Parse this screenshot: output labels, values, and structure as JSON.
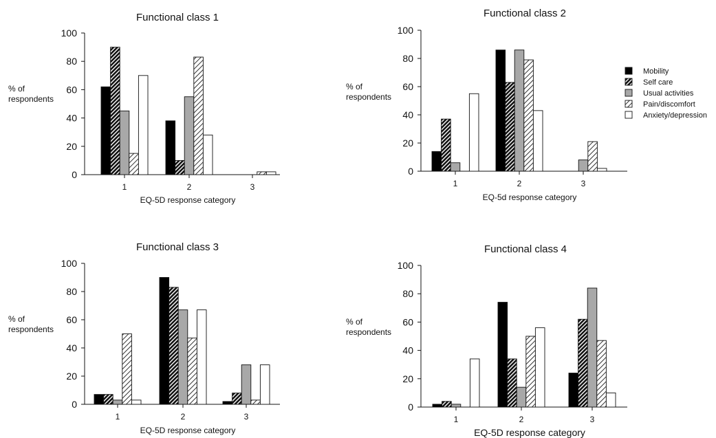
{
  "chart_data": [
    {
      "type": "bar",
      "title": "Functional class 1",
      "xlabel": "EQ-5D response category",
      "ylabel_lines": [
        "% of",
        "respondents"
      ],
      "categories": [
        "1",
        "2",
        "3"
      ],
      "ylim": [
        0,
        100
      ],
      "yticks": [
        "0",
        "20",
        "40",
        "60",
        "80",
        "100"
      ],
      "series": [
        {
          "name": "Mobility",
          "values": [
            62,
            38,
            0
          ]
        },
        {
          "name": "Self care",
          "values": [
            90,
            10,
            0
          ]
        },
        {
          "name": "Usual activities",
          "values": [
            45,
            55,
            0
          ]
        },
        {
          "name": "Pain/discomfort",
          "values": [
            15,
            83,
            2
          ]
        },
        {
          "name": "Anxiety/depression",
          "values": [
            70,
            28,
            2
          ]
        }
      ]
    },
    {
      "type": "bar",
      "title": "Functional class 2",
      "xlabel": "EQ-5d response category",
      "ylabel_lines": [
        "% of",
        "respondents"
      ],
      "categories": [
        "1",
        "2",
        "3"
      ],
      "ylim": [
        0,
        100
      ],
      "yticks": [
        "0",
        "20",
        "40",
        "60",
        "80",
        "100"
      ],
      "legend_position": "right",
      "series": [
        {
          "name": "Mobility",
          "values": [
            14,
            86,
            0
          ]
        },
        {
          "name": "Self care",
          "values": [
            37,
            63,
            0
          ]
        },
        {
          "name": "Usual activities",
          "values": [
            6,
            86,
            8
          ]
        },
        {
          "name": "Pain/discomfort",
          "values": [
            0,
            79,
            21
          ]
        },
        {
          "name": "Anxiety/depression",
          "values": [
            55,
            43,
            2
          ]
        }
      ]
    },
    {
      "type": "bar",
      "title": "Functional class 3",
      "xlabel": "EQ-5D response category",
      "ylabel_lines": [
        "% of",
        "respondents"
      ],
      "categories": [
        "1",
        "2",
        "3"
      ],
      "ylim": [
        0,
        100
      ],
      "yticks": [
        "0",
        "20",
        "40",
        "60",
        "80",
        "100"
      ],
      "series": [
        {
          "name": "Mobility",
          "values": [
            7,
            90,
            2
          ]
        },
        {
          "name": "Self care",
          "values": [
            7,
            83,
            8
          ]
        },
        {
          "name": "Usual activities",
          "values": [
            3,
            67,
            28
          ]
        },
        {
          "name": "Pain/discomfort",
          "values": [
            50,
            47,
            3
          ]
        },
        {
          "name": "Anxiety/depression",
          "values": [
            3,
            67,
            28
          ]
        }
      ]
    },
    {
      "type": "bar",
      "title": "Functional class 4",
      "xlabel": "EQ-5D response category",
      "ylabel_lines": [
        "% of",
        "respondents"
      ],
      "categories": [
        "1",
        "2",
        "3"
      ],
      "ylim": [
        0,
        100
      ],
      "yticks": [
        "0",
        "20",
        "40",
        "60",
        "80",
        "100"
      ],
      "series": [
        {
          "name": "Mobility",
          "values": [
            2,
            74,
            24
          ]
        },
        {
          "name": "Self care",
          "values": [
            4,
            34,
            62
          ]
        },
        {
          "name": "Usual activities",
          "values": [
            2,
            14,
            84
          ]
        },
        {
          "name": "Pain/discomfort",
          "values": [
            0,
            50,
            47
          ]
        },
        {
          "name": "Anxiety/depression",
          "values": [
            34,
            56,
            10
          ]
        }
      ]
    }
  ]
}
